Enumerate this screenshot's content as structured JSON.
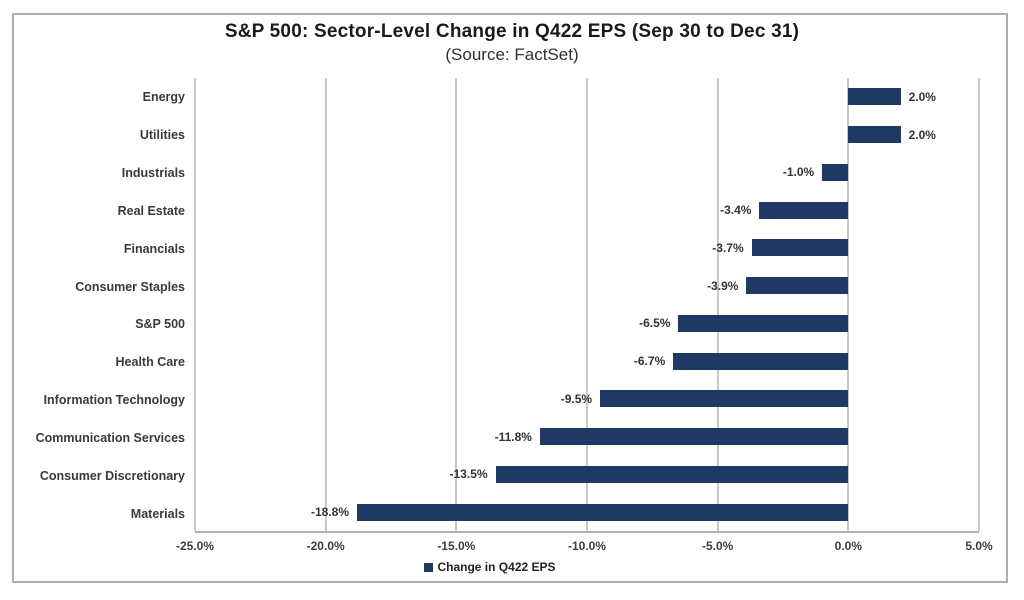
{
  "chart": {
    "title": "S&P 500: Sector-Level Change in Q422 EPS (Sep 30 to Dec 31)",
    "subtitle": "(Source: FactSet)",
    "legend_label": "Change in Q422 EPS"
  },
  "chart_data": {
    "type": "bar",
    "orientation": "horizontal",
    "title": "S&P 500: Sector-Level Change in Q422 EPS (Sep 30 to Dec 31)",
    "subtitle": "(Source: FactSet)",
    "series_name": "Change in Q422 EPS",
    "categories": [
      "Energy",
      "Utilities",
      "Industrials",
      "Real Estate",
      "Financials",
      "Consumer Staples",
      "S&P 500",
      "Health Care",
      "Information Technology",
      "Communication Services",
      "Consumer Discretionary",
      "Materials"
    ],
    "values": [
      2.0,
      2.0,
      -1.0,
      -3.4,
      -3.7,
      -3.9,
      -6.5,
      -6.7,
      -9.5,
      -11.8,
      -13.5,
      -18.8
    ],
    "value_labels": [
      "2.0%",
      "2.0%",
      "-1.0%",
      "-3.4%",
      "-3.7%",
      "-3.9%",
      "-6.5%",
      "-6.7%",
      "-9.5%",
      "-11.8%",
      "-13.5%",
      "-18.8%"
    ],
    "xlim": [
      -25.0,
      5.0
    ],
    "x_tick_values": [
      -25,
      -20,
      -15,
      -10,
      -5,
      0,
      5
    ],
    "x_tick_labels": [
      "-25.0%",
      "-20.0%",
      "-15.0%",
      "-10.0%",
      "-5.0%",
      "0.0%",
      "5.0%"
    ],
    "grid": "vertical",
    "legend_position": "bottom",
    "bar_color": "#1f3864",
    "gridline_color": "#c9c9c9"
  }
}
